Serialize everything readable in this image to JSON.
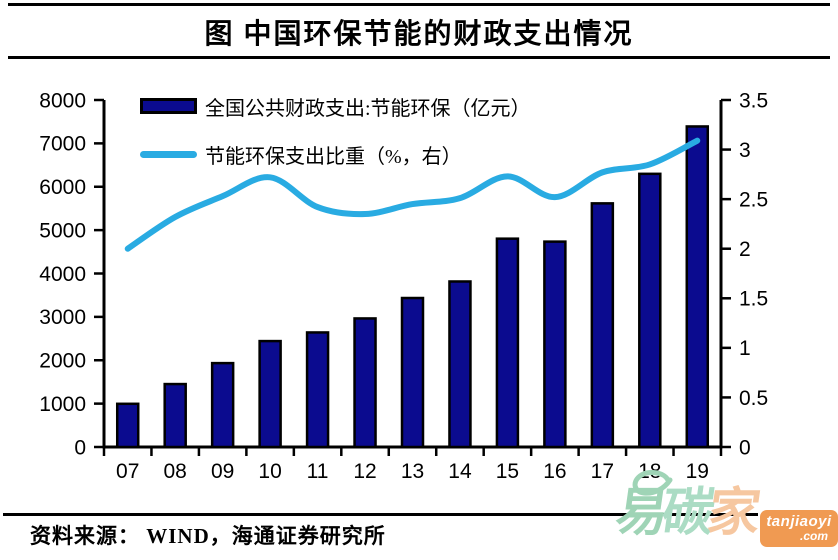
{
  "title": "图 中国环保节能的财政支出情况",
  "source": "资料来源： WIND，海通证券研究所",
  "watermark": {
    "char1": "易",
    "char2": "碳",
    "char3": "家",
    "domain": "tanjiaoyi",
    "tld": ".com"
  },
  "colors": {
    "bar_fill": "#0b0b8f",
    "bar_outline": "#000000",
    "line": "#29abe2",
    "axis": "#000000",
    "wm_green1": "#9fd4b6",
    "wm_green2": "#abdcc4",
    "wm_peach": "#f6c7a0",
    "wm_box": "#f09a52"
  },
  "chart_data": {
    "type": "combo bar+line",
    "title": "图 中国环保节能的财政支出情况",
    "categories": [
      "07",
      "08",
      "09",
      "10",
      "11",
      "12",
      "13",
      "14",
      "15",
      "16",
      "17",
      "18",
      "19"
    ],
    "series": [
      {
        "name": "全国公共财政支出:节能环保（亿元）",
        "type": "bar",
        "axis": "left",
        "color": "#0b0b8f",
        "values": [
          996,
          1451,
          1934,
          2442,
          2641,
          2964,
          3435,
          3816,
          4803,
          4735,
          5617,
          6298,
          7390
        ]
      },
      {
        "name": "节能环保支出比重（%，右）",
        "type": "line",
        "axis": "right",
        "color": "#29abe2",
        "values": [
          2.0,
          2.32,
          2.53,
          2.72,
          2.42,
          2.35,
          2.45,
          2.51,
          2.73,
          2.52,
          2.77,
          2.85,
          3.09
        ]
      }
    ],
    "left_axis": {
      "min": 0,
      "max": 8000,
      "step": 1000
    },
    "right_axis": {
      "min": 0,
      "max": 3.5,
      "step": 0.5
    },
    "legend_position": "top-left",
    "grid": false
  }
}
